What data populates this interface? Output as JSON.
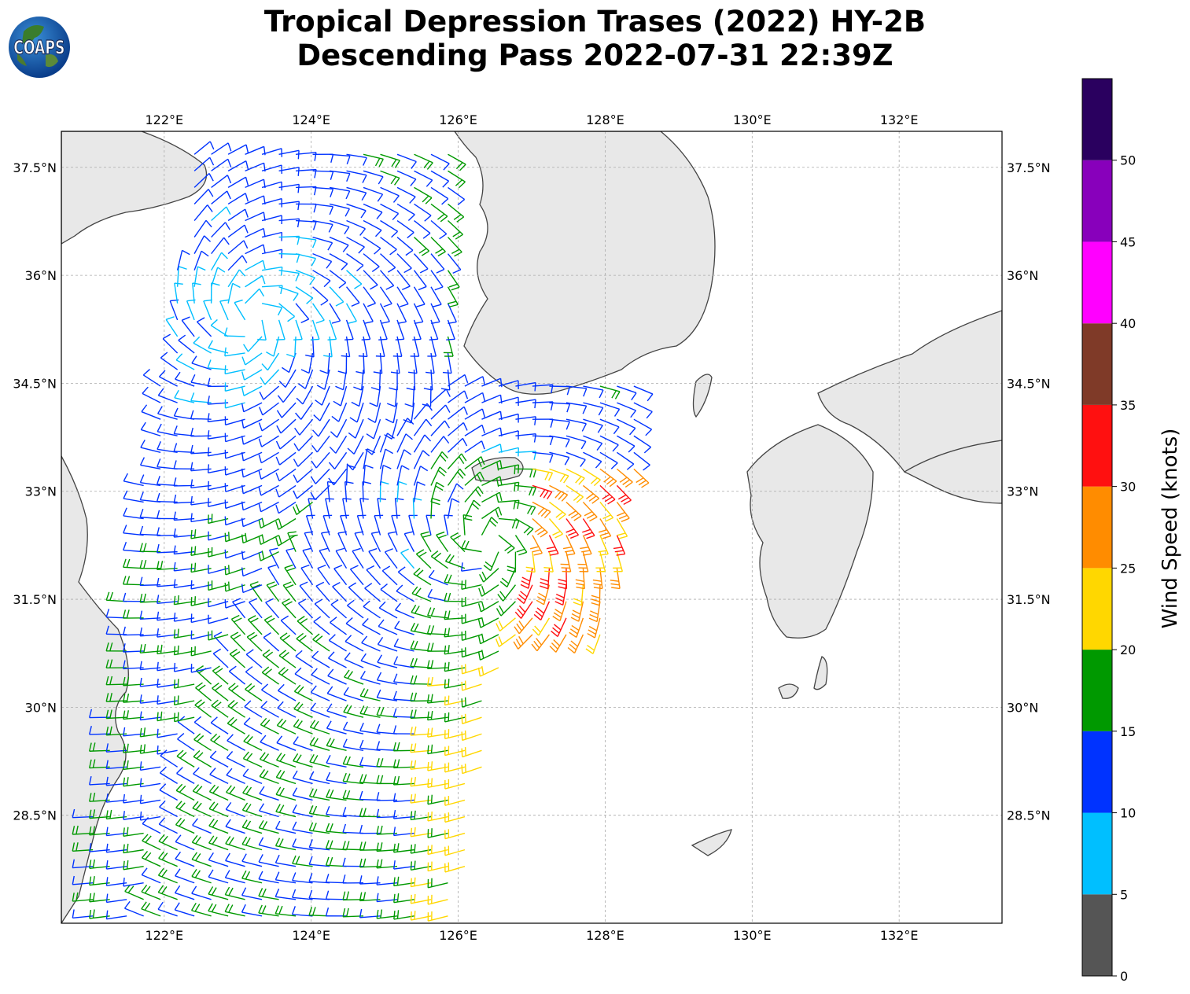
{
  "title": {
    "line1": "Tropical Depression Trases (2022) HY-2B",
    "line2": "Descending Pass 2022-07-31 22:39Z"
  },
  "logo": {
    "text": "COAPS"
  },
  "map": {
    "lon_ticks": [
      "122°E",
      "124°E",
      "126°E",
      "128°E",
      "130°E",
      "132°E"
    ],
    "lat_ticks": [
      "37.5°N",
      "36°N",
      "34.5°N",
      "33°N",
      "31.5°N",
      "30°N",
      "28.5°N"
    ],
    "lon_values": [
      122,
      124,
      126,
      128,
      130,
      132
    ],
    "lat_values": [
      37.5,
      36,
      34.5,
      33,
      31.5,
      30,
      28.5
    ],
    "lon_range": [
      120.6,
      133.4
    ],
    "lat_range": [
      27.0,
      38.0
    ],
    "gridlines": true,
    "land_color": "#e8e8e8",
    "coast_color": "#444444"
  },
  "colorbar": {
    "label": "Wind Speed (knots)",
    "ticks": [
      "0",
      "5",
      "10",
      "15",
      "20",
      "25",
      "30",
      "35",
      "40",
      "45",
      "50"
    ],
    "bins": [
      {
        "from": 0,
        "to": 5,
        "color": "#555555"
      },
      {
        "from": 5,
        "to": 10,
        "color": "#00bfff"
      },
      {
        "from": 10,
        "to": 15,
        "color": "#0033ff"
      },
      {
        "from": 15,
        "to": 20,
        "color": "#009900"
      },
      {
        "from": 20,
        "to": 25,
        "color": "#ffd700"
      },
      {
        "from": 25,
        "to": 30,
        "color": "#ff8c00"
      },
      {
        "from": 30,
        "to": 35,
        "color": "#ff1010"
      },
      {
        "from": 35,
        "to": 40,
        "color": "#7f3a28"
      },
      {
        "from": 40,
        "to": 45,
        "color": "#ff00ff"
      },
      {
        "from": 45,
        "to": 50,
        "color": "#8800bb"
      },
      {
        "from": 50,
        "to": 55,
        "color": "#2a005f"
      }
    ]
  },
  "features": {
    "primary_center": {
      "lon": 123.2,
      "lat": 35.4
    },
    "secondary_center": {
      "lon": 126.4,
      "lat": 32.3
    }
  }
}
